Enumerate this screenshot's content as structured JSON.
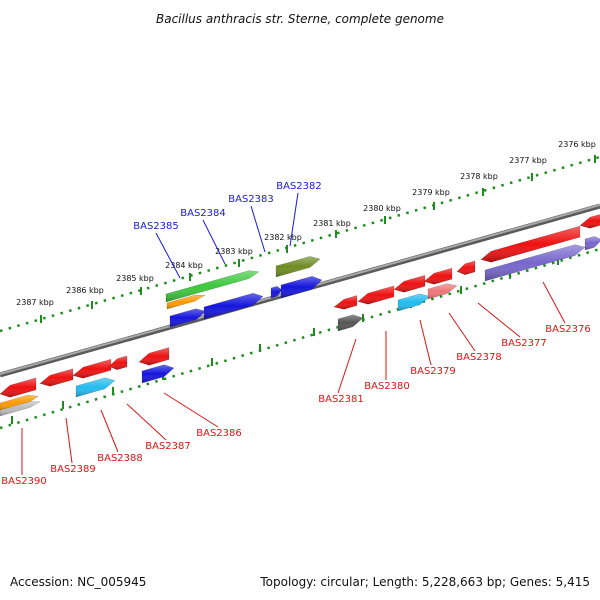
{
  "title": "Bacillus anthracis str. Sterne, complete genome",
  "footer": {
    "accession": "Accession: NC_005945",
    "topology": "Topology: circular; Length: 5,228,663 bp; Genes: 5,415"
  },
  "ruler_upper_labels": [
    "2376 kbp",
    "2377 kbp",
    "2378 kbp",
    "2379 kbp",
    "2380 kbp",
    "2381 kbp",
    "2382 kbp",
    "2383 kbp",
    "2384 kbp",
    "2385 kbp",
    "2386 kbp",
    "2387 kbp"
  ],
  "genes_top_labels": [
    "BAS2382",
    "BAS2383",
    "BAS2384",
    "BAS2385"
  ],
  "genes_bottom_labels": [
    "BAS2376",
    "BAS2377",
    "BAS2378",
    "BAS2379",
    "BAS2380",
    "BAS2381",
    "BAS2386",
    "BAS2387",
    "BAS2388",
    "BAS2389",
    "BAS2390"
  ],
  "colors": {
    "upper_ruler": "#1e8c1e",
    "lower_ruler": "#1e8c1e",
    "backbone": "#808080",
    "top_label": "#1a1adc",
    "bottom_label": "#dc1414",
    "red": "#ee1111",
    "blue": "#1515dd",
    "green": "#3cc83c",
    "olive": "#6e8c22",
    "orange": "#ff9900",
    "cyan": "#22bbee",
    "purple": "#7766cc",
    "pink": "#ee7777",
    "grey": "#555555",
    "silver": "#bbbbbb"
  }
}
